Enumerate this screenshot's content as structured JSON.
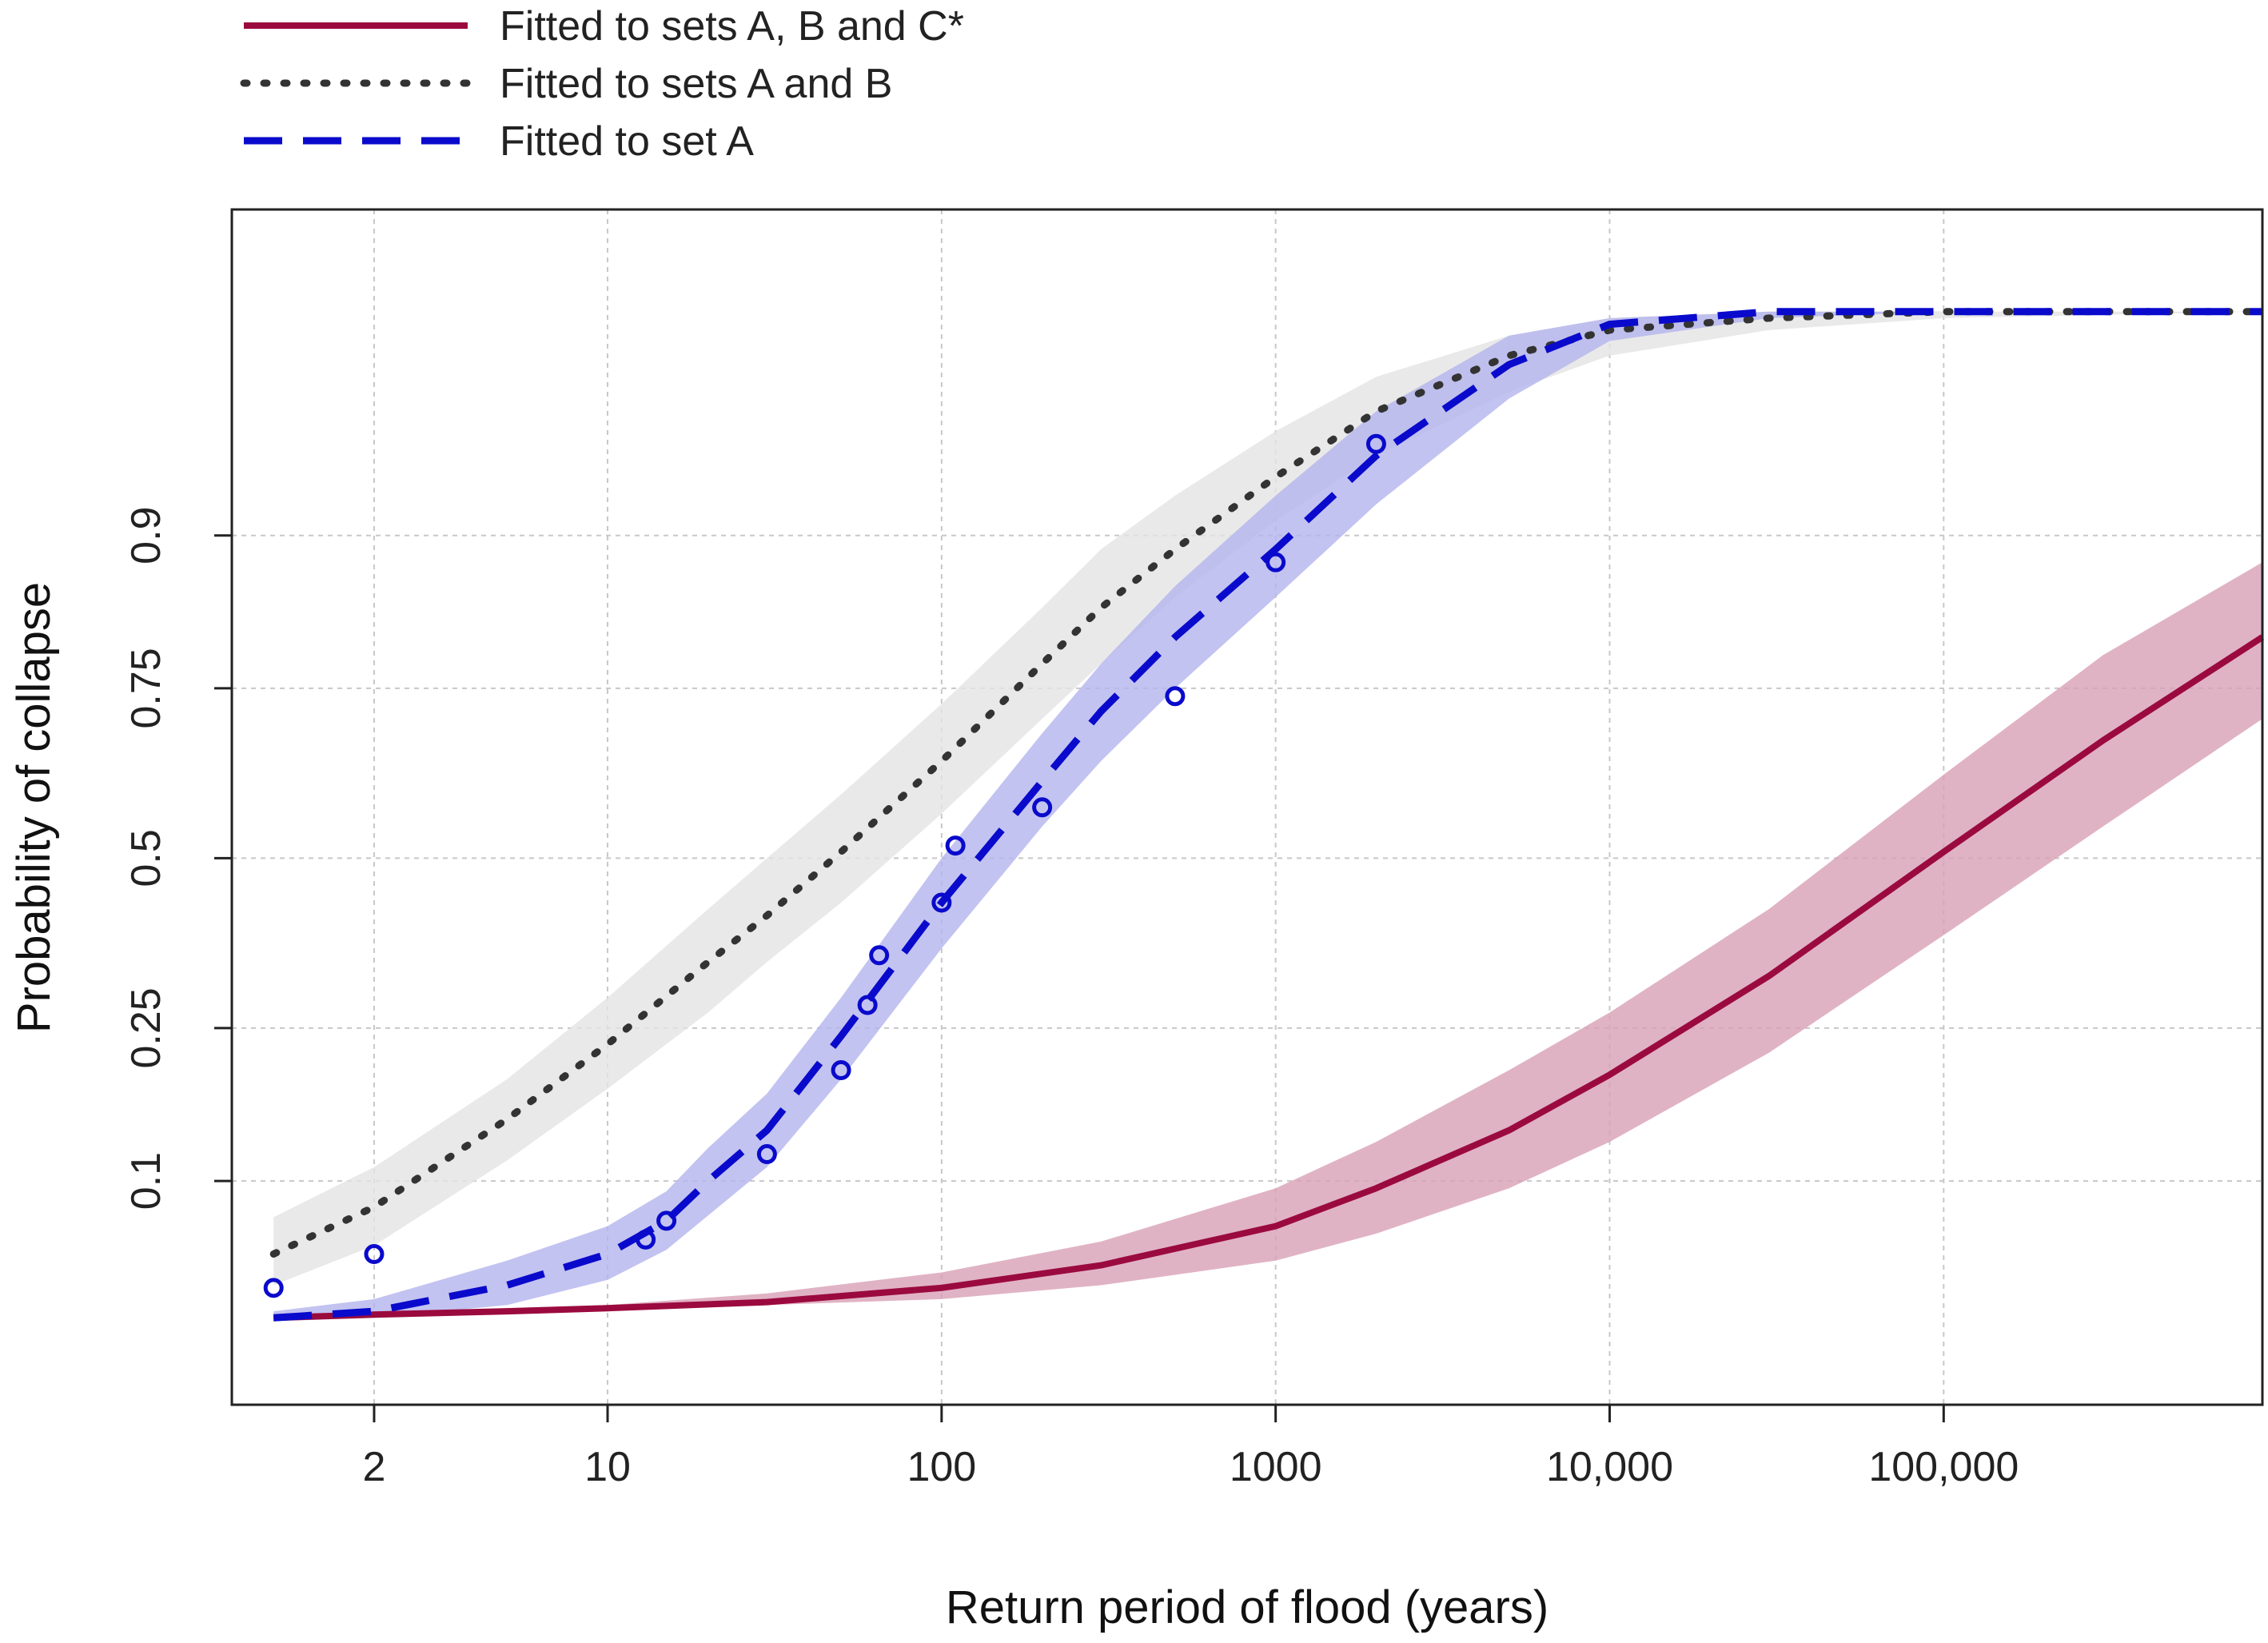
{
  "chart_data": {
    "type": "line",
    "title": "",
    "xlabel": "Return period of flood (years)",
    "ylabel": "Probability of collapse",
    "x_scale": "log",
    "y_scale": "probit",
    "xlim": [
      0.75,
      900000
    ],
    "ylim": [
      0.015,
      0.995
    ],
    "x_ticks": [
      2,
      10,
      100,
      1000,
      10000,
      100000
    ],
    "x_tick_labels": [
      "2",
      "10",
      "100",
      "1000",
      "10,000",
      "100,000"
    ],
    "y_ticks": [
      0.1,
      0.25,
      0.5,
      0.75,
      0.9
    ],
    "y_tick_labels": [
      "0.1",
      "0.25",
      "0.5",
      "0.75",
      "0.9"
    ],
    "grid": true,
    "legend": {
      "placement": "top-left, above plot",
      "entries": [
        {
          "label": "Fitted to sets A, B and C*",
          "color": "#9b0a3e",
          "style": "solid"
        },
        {
          "label": "Fitted to sets A and B",
          "color": "#333333",
          "style": "dotted"
        },
        {
          "label": "Fitted to set A",
          "color": "#0a0acc",
          "style": "dashed"
        }
      ]
    },
    "series": [
      {
        "name": "Fitted to sets A, B and C*",
        "color": "#9b0a3e",
        "style": "solid",
        "band_color": "#d8a0b5",
        "x": [
          1,
          2,
          5,
          10,
          30,
          100,
          300,
          1000,
          2000,
          5000,
          10000,
          30000,
          100000,
          300000,
          900000
        ],
        "y": [
          0.034,
          0.035,
          0.036,
          0.037,
          0.039,
          0.044,
          0.053,
          0.072,
          0.095,
          0.14,
          0.195,
          0.32,
          0.51,
          0.68,
          0.81
        ],
        "lower": [
          0.034,
          0.035,
          0.036,
          0.037,
          0.038,
          0.04,
          0.045,
          0.055,
          0.068,
          0.095,
          0.13,
          0.22,
          0.38,
          0.55,
          0.71
        ],
        "upper": [
          0.034,
          0.035,
          0.037,
          0.038,
          0.042,
          0.05,
          0.064,
          0.095,
          0.13,
          0.2,
          0.27,
          0.42,
          0.63,
          0.79,
          0.88
        ]
      },
      {
        "name": "Fitted to sets A and B",
        "color": "#333333",
        "style": "dotted",
        "band_color": "#e4e4e4",
        "x": [
          1,
          2,
          5,
          10,
          20,
          30,
          50,
          100,
          200,
          300,
          500,
          1000,
          2000,
          5000,
          10000,
          30000,
          100000,
          900000
        ],
        "y": [
          0.058,
          0.083,
          0.15,
          0.23,
          0.34,
          0.41,
          0.51,
          0.65,
          0.78,
          0.84,
          0.89,
          0.935,
          0.962,
          0.977,
          0.982,
          0.984,
          0.985,
          0.985
        ],
        "lower": [
          0.045,
          0.062,
          0.115,
          0.18,
          0.27,
          0.34,
          0.43,
          0.57,
          0.71,
          0.78,
          0.85,
          0.91,
          0.945,
          0.968,
          0.977,
          0.982,
          0.984,
          0.985
        ],
        "upper": [
          0.077,
          0.11,
          0.19,
          0.29,
          0.42,
          0.5,
          0.6,
          0.73,
          0.84,
          0.89,
          0.925,
          0.955,
          0.972,
          0.981,
          0.984,
          0.985,
          0.985,
          0.985
        ]
      },
      {
        "name": "Fitted to set A",
        "color": "#0a0acc",
        "style": "dashed",
        "band_color": "#b4b4ee",
        "x": [
          1,
          2,
          5,
          10,
          15,
          20,
          30,
          50,
          100,
          200,
          300,
          500,
          1000,
          2000,
          5000,
          10000,
          30000,
          100000,
          900000
        ],
        "y": [
          0.034,
          0.036,
          0.045,
          0.058,
          0.075,
          0.1,
          0.14,
          0.24,
          0.43,
          0.62,
          0.72,
          0.81,
          0.89,
          0.945,
          0.975,
          0.983,
          0.985,
          0.985,
          0.985
        ],
        "lower": [
          0.033,
          0.034,
          0.038,
          0.047,
          0.06,
          0.078,
          0.11,
          0.19,
          0.36,
          0.55,
          0.65,
          0.75,
          0.85,
          0.92,
          0.966,
          0.98,
          0.984,
          0.985,
          0.985
        ],
        "upper": [
          0.036,
          0.04,
          0.055,
          0.072,
          0.093,
          0.125,
          0.175,
          0.29,
          0.5,
          0.69,
          0.78,
          0.86,
          0.925,
          0.962,
          0.981,
          0.984,
          0.985,
          0.985,
          0.985
        ]
      }
    ],
    "points": {
      "series": "Fitted to set A",
      "color": "#0a0acc",
      "marker": "open-circle",
      "x": [
        1,
        2,
        13,
        15,
        30,
        50,
        60,
        65,
        100,
        110,
        200,
        500,
        1000,
        2000
      ],
      "y": [
        0.044,
        0.058,
        0.065,
        0.075,
        0.12,
        0.2,
        0.28,
        0.35,
        0.43,
        0.52,
        0.58,
        0.74,
        0.88,
        0.95
      ]
    }
  }
}
